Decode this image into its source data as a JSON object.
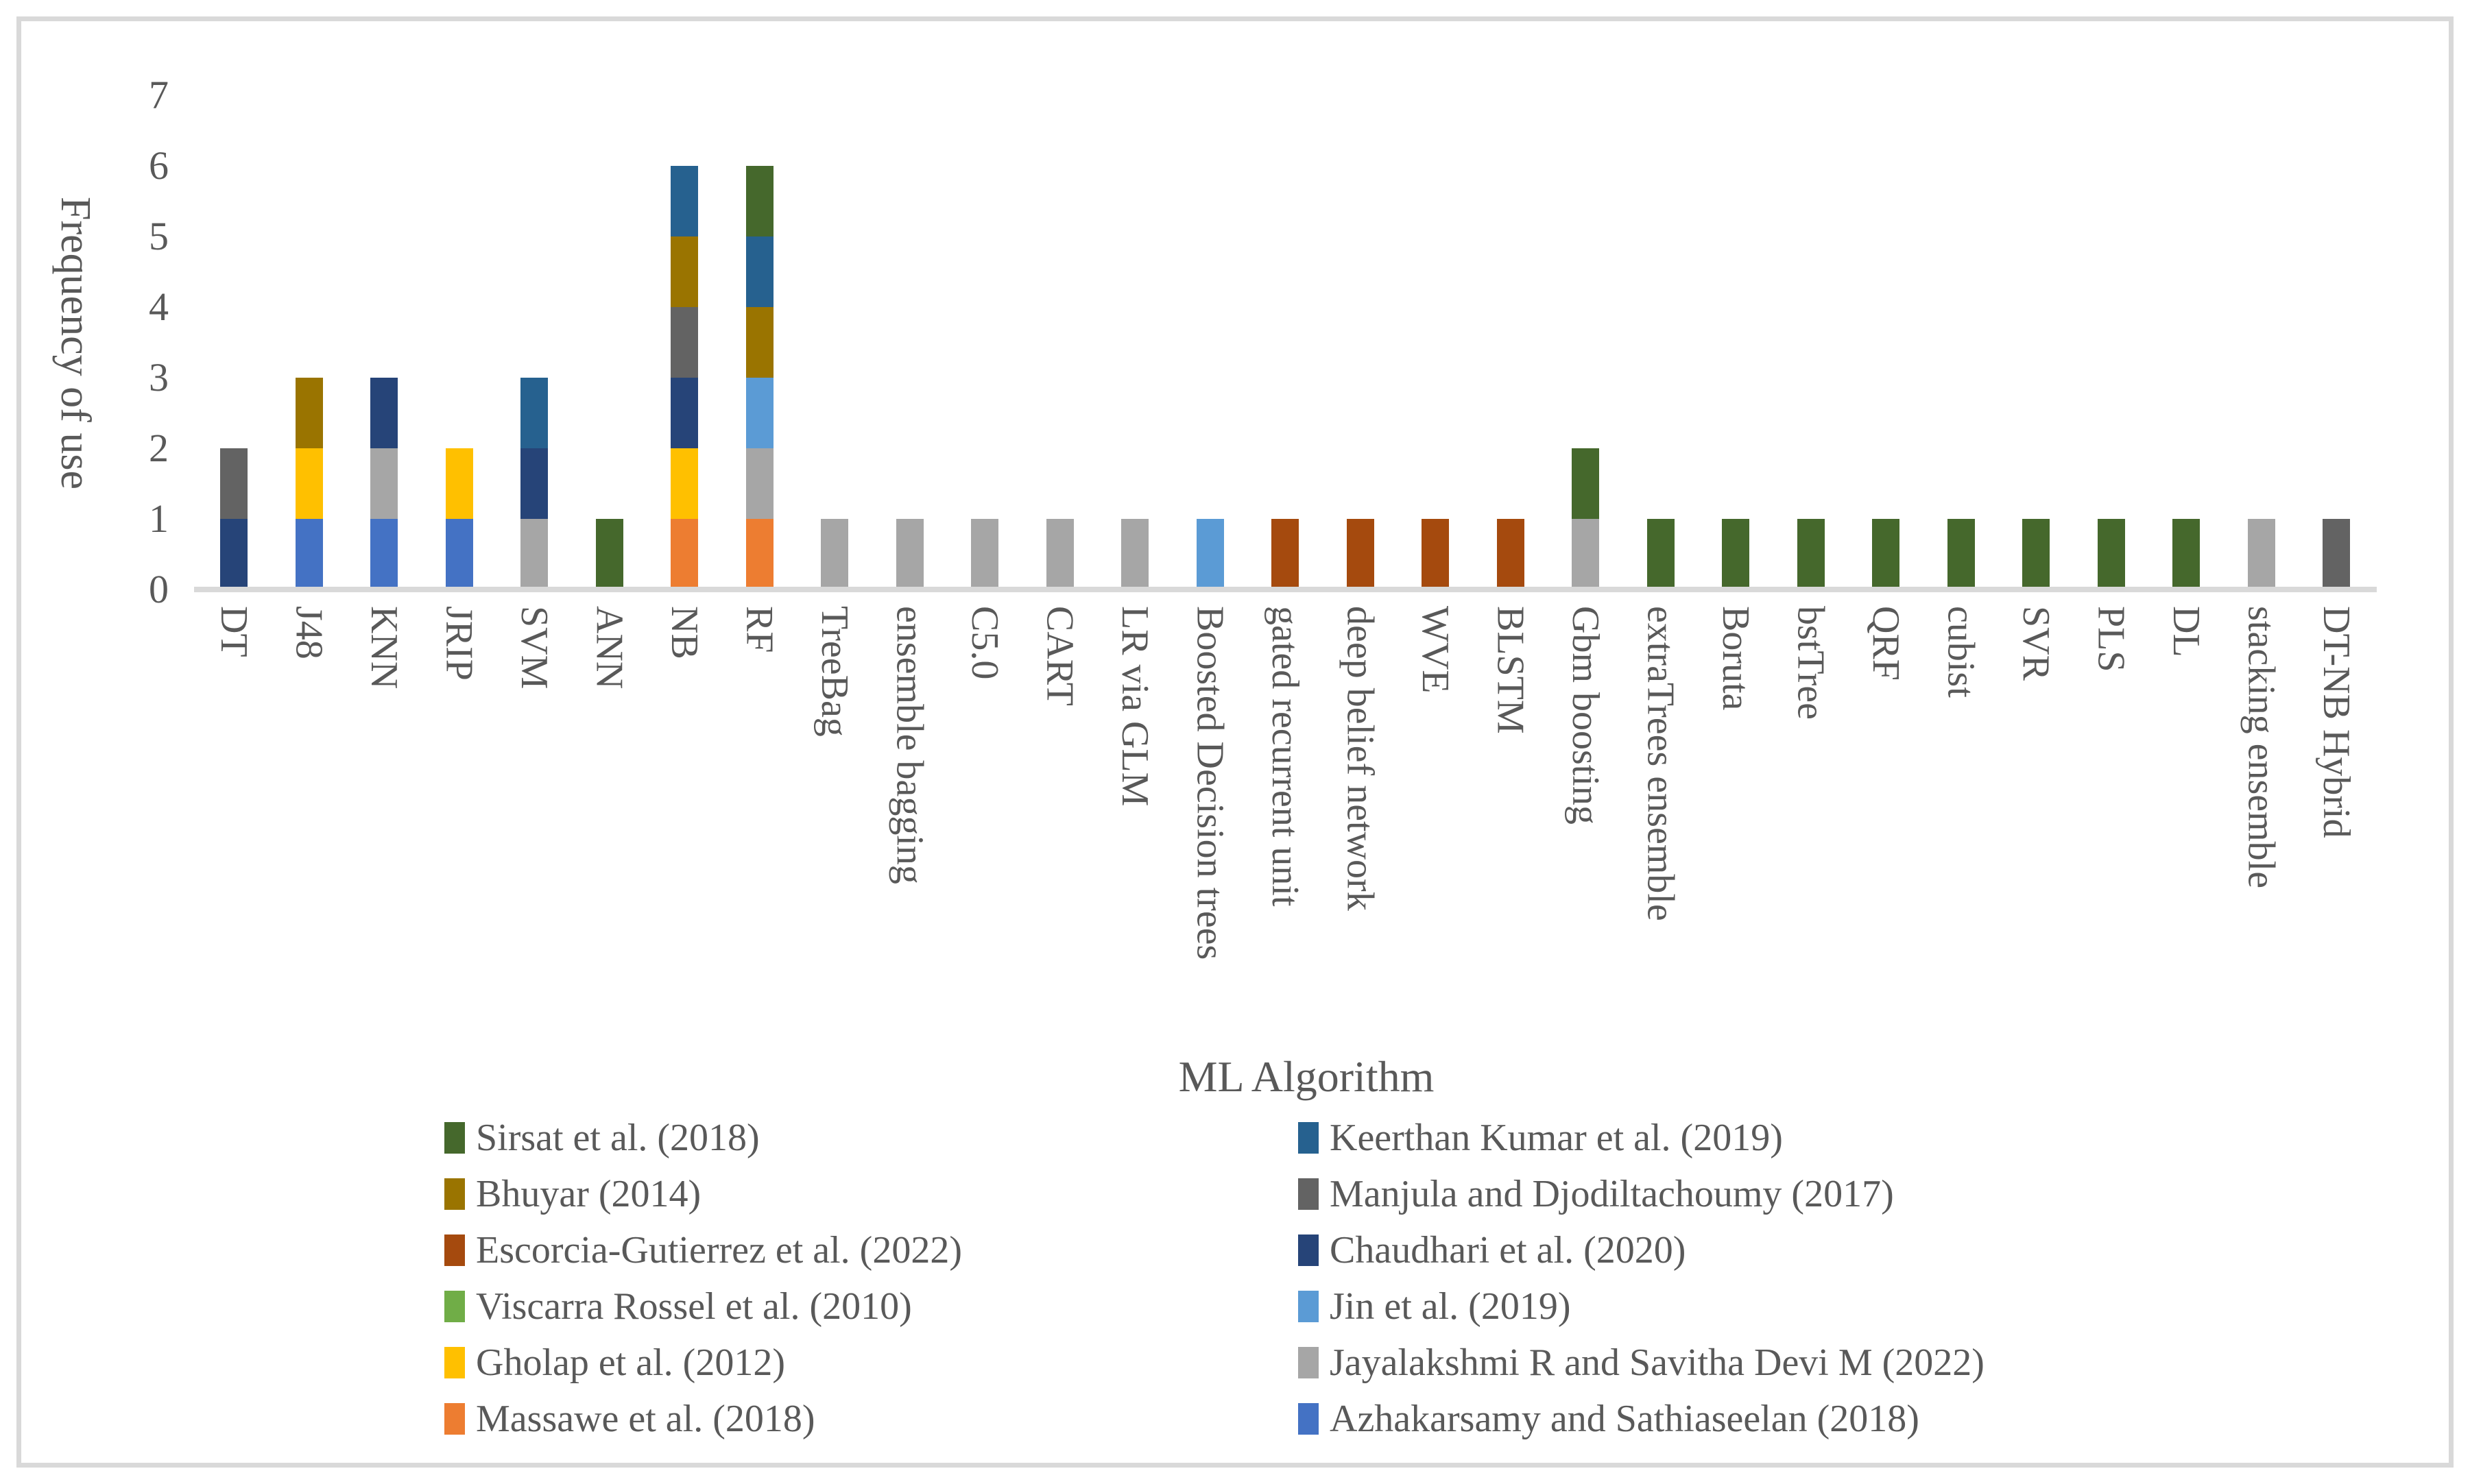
{
  "figure": {
    "background_color": "#FFFFFF",
    "border_color": "#D9D9D9",
    "text_color": "#595959"
  },
  "chart_data": {
    "type": "bar",
    "stacked": true,
    "xlabel": "ML Algorithm",
    "ylabel": "Frequency of use",
    "ylim": [
      0,
      7
    ],
    "yticks": [
      0,
      1,
      2,
      3,
      4,
      5,
      6,
      7
    ],
    "grid": false,
    "legend_position": "bottom-two-columns",
    "stack_order": "reverse-of-legend-order-bottom-to-top",
    "categories": [
      "DT",
      "J48",
      "KNN",
      "JRIP",
      "SVM",
      "ANN",
      "NB",
      "RF",
      "TreeBag",
      "ensemble bagging",
      "C5.0",
      "CART",
      "LR via GLM",
      "Boosted Decision trees",
      "gated recurrent unit",
      "deep belief network",
      "WVE",
      "BLSTM",
      "Gbm boosting",
      "extraTrees ensemble",
      "Boruta",
      "bstTree",
      "QRF",
      "cubist",
      "SVR",
      "PLS",
      "DL",
      "stacking ensemble",
      "DT-NB Hybrid"
    ],
    "series": [
      {
        "name": "Sirsat et al. (2018)",
        "color": "#45682C",
        "values": [
          0,
          0,
          0,
          0,
          0,
          1,
          0,
          1,
          0,
          0,
          0,
          0,
          0,
          0,
          0,
          0,
          0,
          0,
          1,
          1,
          1,
          1,
          1,
          1,
          1,
          1,
          1,
          0,
          0
        ]
      },
      {
        "name": "Keerthan Kumar et al. (2019)",
        "color": "#26618F",
        "values": [
          0,
          0,
          0,
          0,
          1,
          0,
          1,
          1,
          0,
          0,
          0,
          0,
          0,
          0,
          0,
          0,
          0,
          0,
          0,
          0,
          0,
          0,
          0,
          0,
          0,
          0,
          0,
          0,
          0
        ]
      },
      {
        "name": "Bhuyar (2014)",
        "color": "#9A7400",
        "values": [
          0,
          1,
          0,
          0,
          0,
          0,
          1,
          1,
          0,
          0,
          0,
          0,
          0,
          0,
          0,
          0,
          0,
          0,
          0,
          0,
          0,
          0,
          0,
          0,
          0,
          0,
          0,
          0,
          0
        ]
      },
      {
        "name": "Manjula and Djodiltachoumy (2017)",
        "color": "#636363",
        "values": [
          1,
          0,
          0,
          0,
          0,
          0,
          1,
          0,
          0,
          0,
          0,
          0,
          0,
          0,
          0,
          0,
          0,
          0,
          0,
          0,
          0,
          0,
          0,
          0,
          0,
          0,
          0,
          0,
          1
        ]
      },
      {
        "name": "Escorcia-Gutierrez et al. (2022)",
        "color": "#A54A0E",
        "values": [
          0,
          0,
          0,
          0,
          0,
          0,
          0,
          0,
          0,
          0,
          0,
          0,
          0,
          0,
          1,
          1,
          1,
          1,
          0,
          0,
          0,
          0,
          0,
          0,
          0,
          0,
          0,
          0,
          0
        ]
      },
      {
        "name": "Chaudhari et al. (2020)",
        "color": "#264478",
        "values": [
          1,
          0,
          1,
          0,
          1,
          0,
          1,
          0,
          0,
          0,
          0,
          0,
          0,
          0,
          0,
          0,
          0,
          0,
          0,
          0,
          0,
          0,
          0,
          0,
          0,
          0,
          0,
          0,
          0
        ]
      },
      {
        "name": "Viscarra Rossel et al. (2010)",
        "color": "#70AD47",
        "values": [
          0,
          0,
          0,
          0,
          0,
          0,
          0,
          0,
          0,
          0,
          0,
          0,
          0,
          0,
          0,
          0,
          0,
          0,
          0,
          0,
          0,
          0,
          0,
          0,
          0,
          0,
          0,
          0,
          0
        ]
      },
      {
        "name": "Jin et al. (2019)",
        "color": "#5B9BD5",
        "values": [
          0,
          0,
          0,
          0,
          0,
          0,
          0,
          1,
          0,
          0,
          0,
          0,
          0,
          1,
          0,
          0,
          0,
          0,
          0,
          0,
          0,
          0,
          0,
          0,
          0,
          0,
          0,
          0,
          0
        ]
      },
      {
        "name": "Gholap et al. (2012)",
        "color": "#FFC000",
        "values": [
          0,
          1,
          0,
          1,
          0,
          0,
          1,
          0,
          0,
          0,
          0,
          0,
          0,
          0,
          0,
          0,
          0,
          0,
          0,
          0,
          0,
          0,
          0,
          0,
          0,
          0,
          0,
          0,
          0
        ]
      },
      {
        "name": "Jayalakshmi R and Savitha Devi M (2022)",
        "color": "#A6A6A6",
        "values": [
          0,
          0,
          1,
          0,
          1,
          0,
          0,
          1,
          1,
          1,
          1,
          1,
          1,
          0,
          0,
          0,
          0,
          0,
          1,
          0,
          0,
          0,
          0,
          0,
          0,
          0,
          0,
          1,
          0
        ]
      },
      {
        "name": "Massawe et al. (2018)",
        "color": "#ED7D31",
        "values": [
          0,
          0,
          0,
          0,
          0,
          0,
          1,
          1,
          0,
          0,
          0,
          0,
          0,
          0,
          0,
          0,
          0,
          0,
          0,
          0,
          0,
          0,
          0,
          0,
          0,
          0,
          0,
          0,
          0
        ]
      },
      {
        "name": "Azhakarsamy and Sathiaseelan (2018)",
        "color": "#4472C4",
        "values": [
          0,
          1,
          1,
          1,
          0,
          0,
          0,
          0,
          0,
          0,
          0,
          0,
          0,
          0,
          0,
          0,
          0,
          0,
          0,
          0,
          0,
          0,
          0,
          0,
          0,
          0,
          0,
          0,
          0
        ]
      }
    ]
  }
}
